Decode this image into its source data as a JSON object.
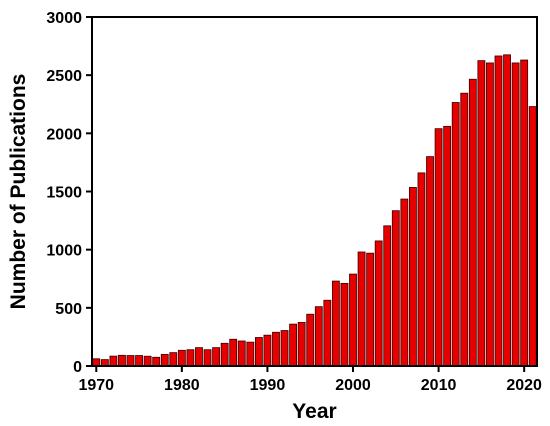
{
  "chart_data": {
    "type": "bar",
    "title": "",
    "xlabel": "Year",
    "ylabel": "Number of Publications",
    "xlim": [
      1969.5,
      2021.5
    ],
    "ylim": [
      0,
      3000
    ],
    "xticks": [
      1970,
      1980,
      1990,
      2000,
      2010,
      2020
    ],
    "yticks": [
      0,
      500,
      1000,
      1500,
      2000,
      2500,
      3000
    ],
    "grid": false,
    "bar_color": "#e60000",
    "bar_edge_color": "#3a0000",
    "categories": [
      1970,
      1971,
      1972,
      1973,
      1974,
      1975,
      1976,
      1977,
      1978,
      1979,
      1980,
      1981,
      1982,
      1983,
      1984,
      1985,
      1986,
      1987,
      1988,
      1989,
      1990,
      1991,
      1992,
      1993,
      1994,
      1995,
      1996,
      1997,
      1998,
      1999,
      2000,
      2001,
      2002,
      2003,
      2004,
      2005,
      2006,
      2007,
      2008,
      2009,
      2010,
      2011,
      2012,
      2013,
      2014,
      2015,
      2016,
      2017,
      2018,
      2019,
      2020,
      2021
    ],
    "values": [
      62,
      55,
      85,
      92,
      90,
      90,
      84,
      75,
      100,
      115,
      135,
      140,
      158,
      140,
      158,
      195,
      230,
      215,
      205,
      245,
      265,
      290,
      305,
      360,
      375,
      445,
      510,
      565,
      730,
      710,
      790,
      980,
      970,
      1075,
      1205,
      1335,
      1435,
      1535,
      1660,
      1800,
      2040,
      2060,
      2265,
      2345,
      2465,
      2625,
      2605,
      2665,
      2675,
      2605,
      2630,
      2230
    ]
  }
}
